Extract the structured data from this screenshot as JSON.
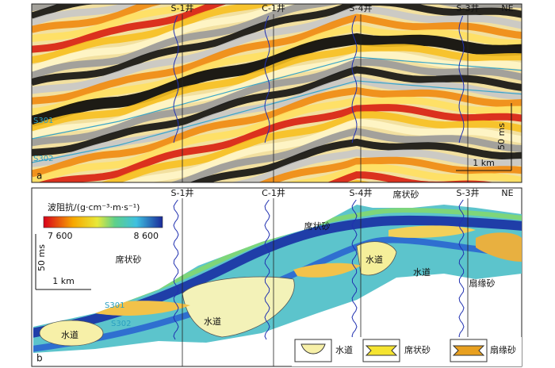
{
  "panel_a": {
    "label": "a",
    "wells": [
      "S-1井",
      "C-1井",
      "S-4井",
      "S-3井"
    ],
    "direction": "NE",
    "horizons": [
      "S301",
      "S302"
    ],
    "scale_time": "50 ms",
    "scale_distance": "1 km"
  },
  "panel_b": {
    "label": "b",
    "colorbar": {
      "title": "波阻抗/(g·cm⁻³·m·s⁻¹)",
      "min_label": "7 600",
      "max_label": "8 600"
    },
    "wells": [
      "S-1井",
      "C-1井",
      "S-4井",
      "S-3井"
    ],
    "direction": "NE",
    "horizons": [
      "S301",
      "S302"
    ],
    "scale_time": "50 ms",
    "scale_distance": "1 km",
    "facies_labels": [
      "席状砂",
      "席状砂",
      "席状砂",
      "水道",
      "水道",
      "水道",
      "水道",
      "扇缘砂"
    ],
    "legend": [
      "水道",
      "席状砂",
      "扇缘砂"
    ]
  }
}
